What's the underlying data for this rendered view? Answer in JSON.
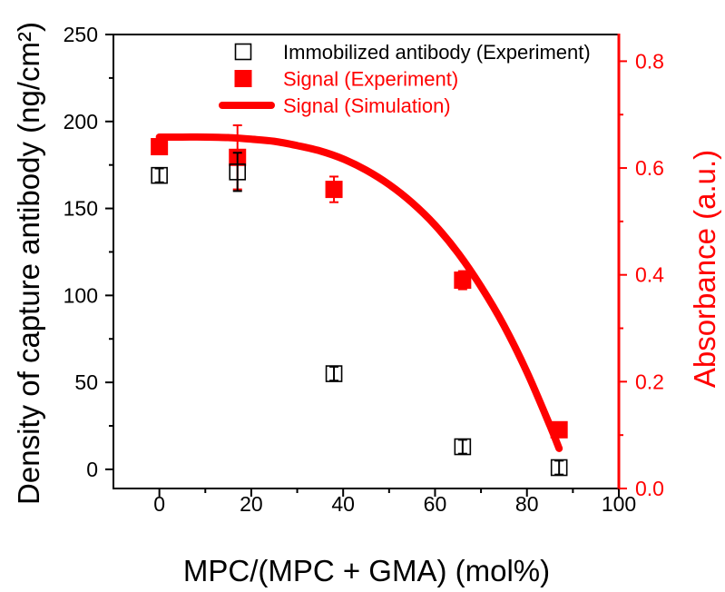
{
  "chart_data": {
    "type": "scatter",
    "xlabel": "MPC/(MPC + GMA) (mol%)",
    "ylabel": "Density of capture antibody (ng/cm²)",
    "y2label": "Absorbance (a.u.)",
    "xlim": [
      -10,
      100
    ],
    "ylim": [
      -11,
      250
    ],
    "y2lim": [
      0,
      0.85
    ],
    "xticks": [
      0,
      20,
      40,
      60,
      80,
      100
    ],
    "xtick_labels": [
      "0",
      "20",
      "40",
      "60",
      "80",
      "100"
    ],
    "yticks": [
      0,
      50,
      100,
      150,
      200,
      250
    ],
    "ytick_labels": [
      "0",
      "50",
      "100",
      "150",
      "200",
      "250"
    ],
    "y2ticks": [
      0,
      0.2,
      0.4,
      0.6,
      0.8
    ],
    "y2tick_labels": [
      "0.0",
      "0.2",
      "0.4",
      "0.6",
      "0.8"
    ],
    "axis_color": "#000000",
    "y2_color": "#ff0000",
    "grid": false,
    "legend_position": "top-right",
    "series": [
      {
        "name": "Immobilized antibody (Experiment)",
        "type": "scatter",
        "y_axis": "left",
        "color": "#000000",
        "filled": false,
        "x": [
          0,
          17,
          38,
          66,
          87
        ],
        "y": [
          169,
          171,
          55,
          13,
          1
        ],
        "yerr": [
          4,
          11,
          4,
          4,
          4
        ]
      },
      {
        "name": "Signal (Experiment)",
        "type": "scatter",
        "y_axis": "right",
        "color": "#ff0000",
        "filled": true,
        "x": [
          0,
          17,
          38,
          66,
          87
        ],
        "y": [
          0.64,
          0.62,
          0.56,
          0.39,
          0.11
        ],
        "yerr": [
          0.01,
          0.06,
          0.024,
          0.017,
          0.014
        ]
      },
      {
        "name": "Signal (Simulation)",
        "type": "line",
        "y_axis": "right",
        "color": "#ff0000",
        "x": [
          0,
          5,
          10,
          15,
          20,
          25,
          30,
          35,
          40,
          45,
          50,
          55,
          60,
          65,
          70,
          75,
          80,
          85,
          87
        ],
        "y": [
          0.658,
          0.658,
          0.658,
          0.657,
          0.654,
          0.65,
          0.642,
          0.632,
          0.617,
          0.596,
          0.569,
          0.535,
          0.493,
          0.441,
          0.378,
          0.305,
          0.218,
          0.118,
          0.075
        ]
      }
    ]
  }
}
